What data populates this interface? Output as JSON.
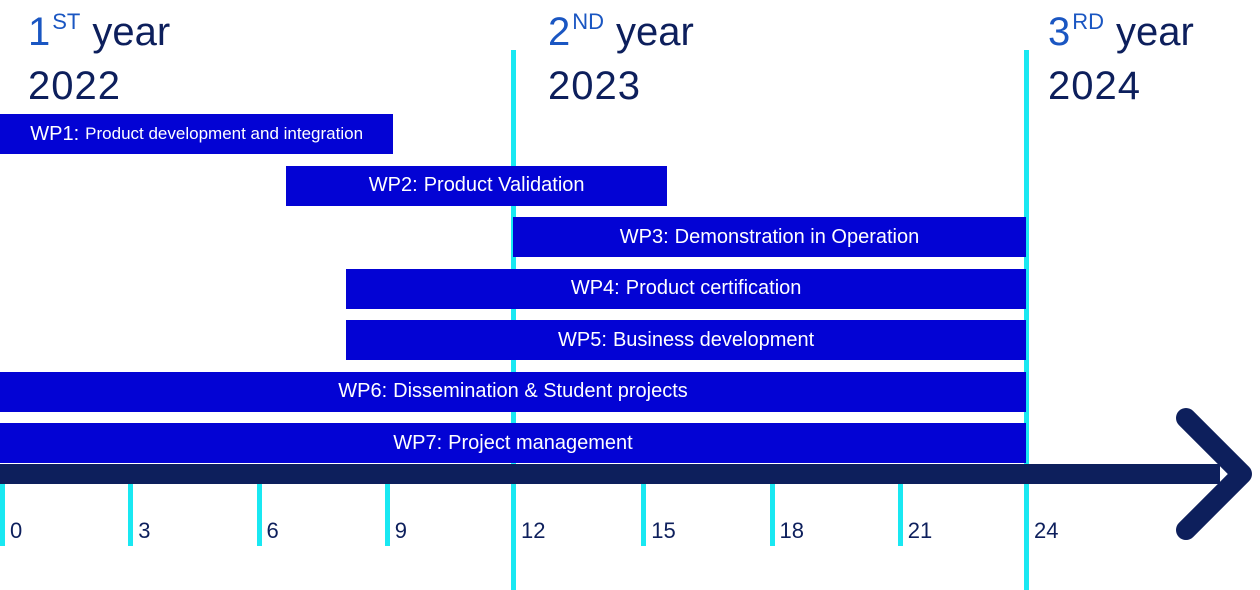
{
  "years": [
    {
      "num": "1",
      "sup": "ST",
      "word": "year",
      "year": "2022"
    },
    {
      "num": "2",
      "sup": "ND",
      "word": "year",
      "year": "2023"
    },
    {
      "num": "3",
      "sup": "RD",
      "word": "year",
      "year": "2024"
    }
  ],
  "colors": {
    "bar": "#0303d4",
    "divider": "#19e8f2",
    "axis": "#0d1f5c",
    "year_number": "#1a56c2",
    "text": "#0d1f5c"
  },
  "chart_data": {
    "type": "bar",
    "orientation": "horizontal",
    "subtype": "gantt",
    "x_unit": "months",
    "xlim": [
      0,
      30
    ],
    "x_ticks": [
      0,
      3,
      6,
      9,
      12,
      15,
      18,
      21,
      24
    ],
    "year_boundaries": [
      12,
      24
    ],
    "tasks": [
      {
        "id": "WP1:",
        "name": "Product development and integration",
        "start": 0,
        "end": 9.2
      },
      {
        "id": "WP2:",
        "name": "Product Validation",
        "start": 6.7,
        "end": 15.6
      },
      {
        "id": "WP3:",
        "name": "Demonstration in Operation",
        "start": 12,
        "end": 24
      },
      {
        "id": "WP4:",
        "name": "Product certification",
        "start": 8.1,
        "end": 24
      },
      {
        "id": "WP5:",
        "name": "Business development",
        "start": 8.1,
        "end": 24
      },
      {
        "id": "WP6:",
        "name": "Dissemination & Student projects",
        "start": 0,
        "end": 24
      },
      {
        "id": "WP7:",
        "name": "Project management",
        "start": 0,
        "end": 24
      }
    ]
  }
}
